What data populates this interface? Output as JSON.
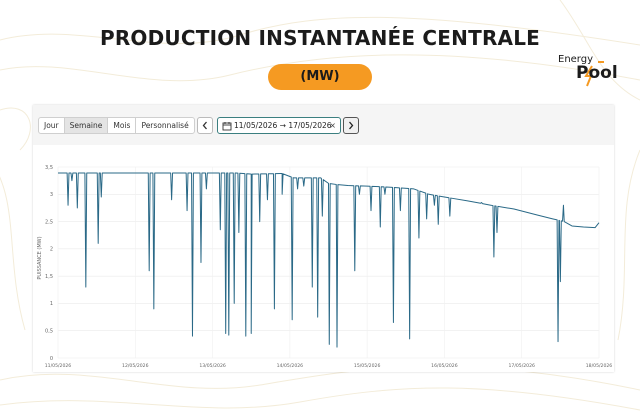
{
  "header": {
    "title": "PRODUCTION INSTANTANÉE CENTRALE",
    "unit": "(MW)",
    "logo_top": "Energy",
    "logo_bottom": "Pool",
    "accent_color": "#f59a22"
  },
  "toolbar": {
    "periods": [
      {
        "label": "Jour",
        "active": false
      },
      {
        "label": "Semaine",
        "active": true
      },
      {
        "label": "Mois",
        "active": false
      },
      {
        "label": "Personnalisé",
        "active": false
      }
    ],
    "prev_icon": "chevron-left-icon",
    "next_icon": "chevron-right-icon",
    "calendar_icon": "calendar-icon",
    "date_start": "11/05/2026",
    "date_arrow": "→",
    "date_end": "17/05/2026",
    "clear_icon": "close-icon",
    "clear_label": "×"
  },
  "chart_data": {
    "type": "line",
    "title": "",
    "xlabel": "",
    "ylabel": "PUISSANCE (MW)",
    "ylim": [
      0,
      3.5
    ],
    "yticks": [
      "0",
      "0,5",
      "1",
      "1,5",
      "2",
      "2,5",
      "3",
      "3,5"
    ],
    "x_ticks": [
      "11/05/2026",
      "12/05/2026",
      "13/05/2026",
      "14/05/2026",
      "15/05/2026",
      "16/05/2026",
      "17/05/2026",
      "18/05/2026"
    ],
    "xlim": [
      0,
      7
    ],
    "grid": true,
    "line_color": "#2a6987",
    "series": [
      {
        "baseline": [
          [
            0,
            3.39
          ],
          [
            2.3,
            3.39
          ],
          [
            2.5,
            3.37
          ],
          [
            2.9,
            3.38
          ],
          [
            3.05,
            3.3
          ],
          [
            3.4,
            3.3
          ],
          [
            3.5,
            3.2
          ],
          [
            3.6,
            3.18
          ],
          [
            3.75,
            3.16
          ],
          [
            4.0,
            3.15
          ],
          [
            4.3,
            3.13
          ],
          [
            4.6,
            3.1
          ],
          [
            4.8,
            3.0
          ],
          [
            5.0,
            2.95
          ],
          [
            5.3,
            2.88
          ],
          [
            5.6,
            2.8
          ],
          [
            5.9,
            2.73
          ],
          [
            6.2,
            2.62
          ],
          [
            6.4,
            2.55
          ],
          [
            6.55,
            2.5
          ],
          [
            6.65,
            2.42
          ],
          [
            6.8,
            2.4
          ],
          [
            6.95,
            2.39
          ],
          [
            7.0,
            2.48
          ]
        ],
        "dips": [
          [
            0.13,
            2.8
          ],
          [
            0.18,
            3.25
          ],
          [
            0.25,
            2.75
          ],
          [
            0.36,
            1.3
          ],
          [
            0.52,
            2.1
          ],
          [
            0.56,
            2.95
          ],
          [
            1.18,
            1.6
          ],
          [
            1.24,
            0.9
          ],
          [
            1.47,
            2.9
          ],
          [
            1.67,
            2.7
          ],
          [
            1.74,
            0.4
          ],
          [
            1.85,
            1.75
          ],
          [
            1.92,
            3.1
          ],
          [
            2.1,
            2.35
          ],
          [
            2.17,
            0.45
          ],
          [
            2.21,
            0.42
          ],
          [
            2.28,
            1.0
          ],
          [
            2.34,
            2.3
          ],
          [
            2.43,
            0.4
          ],
          [
            2.5,
            0.45
          ],
          [
            2.61,
            2.5
          ],
          [
            2.71,
            2.9
          ],
          [
            2.8,
            0.9
          ],
          [
            2.9,
            3.0
          ],
          [
            3.03,
            0.7
          ],
          [
            3.1,
            3.1
          ],
          [
            3.18,
            3.15
          ],
          [
            3.29,
            1.3
          ],
          [
            3.36,
            0.75
          ],
          [
            3.42,
            2.6
          ],
          [
            3.51,
            0.25
          ],
          [
            3.61,
            0.2
          ],
          [
            3.84,
            1.6
          ],
          [
            3.9,
            3.0
          ],
          [
            4.05,
            2.7
          ],
          [
            4.17,
            2.4
          ],
          [
            4.23,
            3.0
          ],
          [
            4.34,
            0.65
          ],
          [
            4.43,
            2.7
          ],
          [
            4.55,
            0.35
          ],
          [
            4.67,
            2.2
          ],
          [
            4.77,
            2.55
          ],
          [
            4.87,
            2.8
          ],
          [
            4.92,
            2.45
          ],
          [
            5.07,
            2.6
          ],
          [
            5.48,
            2.85
          ],
          [
            5.64,
            1.85
          ],
          [
            5.68,
            2.3
          ],
          [
            6.47,
            0.3
          ],
          [
            6.5,
            1.4
          ],
          [
            6.54,
            2.8
          ]
        ]
      }
    ]
  }
}
